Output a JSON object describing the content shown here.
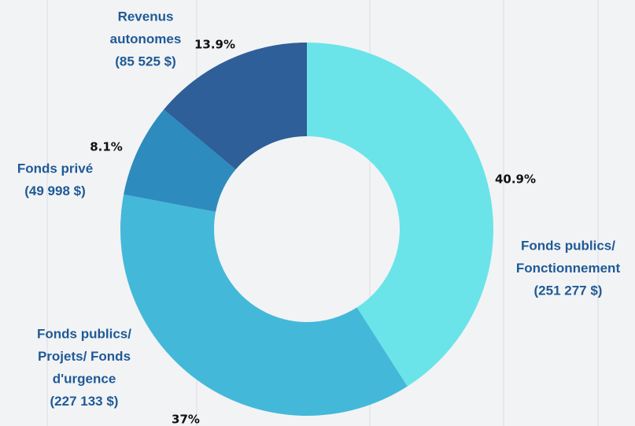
{
  "chart_data": {
    "type": "donut",
    "categories": [
      [
        "Fonds publics/",
        "Fonctionnement"
      ],
      [
        "Fonds publics/",
        "Projets/ Fonds",
        "d'urgence"
      ],
      [
        "Fonds privé"
      ],
      [
        "Revenus",
        "autonomes"
      ]
    ],
    "values": [
      40.9,
      37,
      8.1,
      13.9
    ],
    "value_labels": [
      "40.9%",
      "37%",
      "8.1%",
      "13.9%"
    ],
    "amounts": [
      251277,
      227133,
      49998,
      85525
    ],
    "amount_labels": [
      "(251 277 $)",
      "(227 133 $)",
      "(49 998 $)",
      "(85 525 $)"
    ],
    "colors": [
      "#6ae4e9",
      "#44b8d8",
      "#2d8bbd",
      "#2e5f98"
    ]
  }
}
